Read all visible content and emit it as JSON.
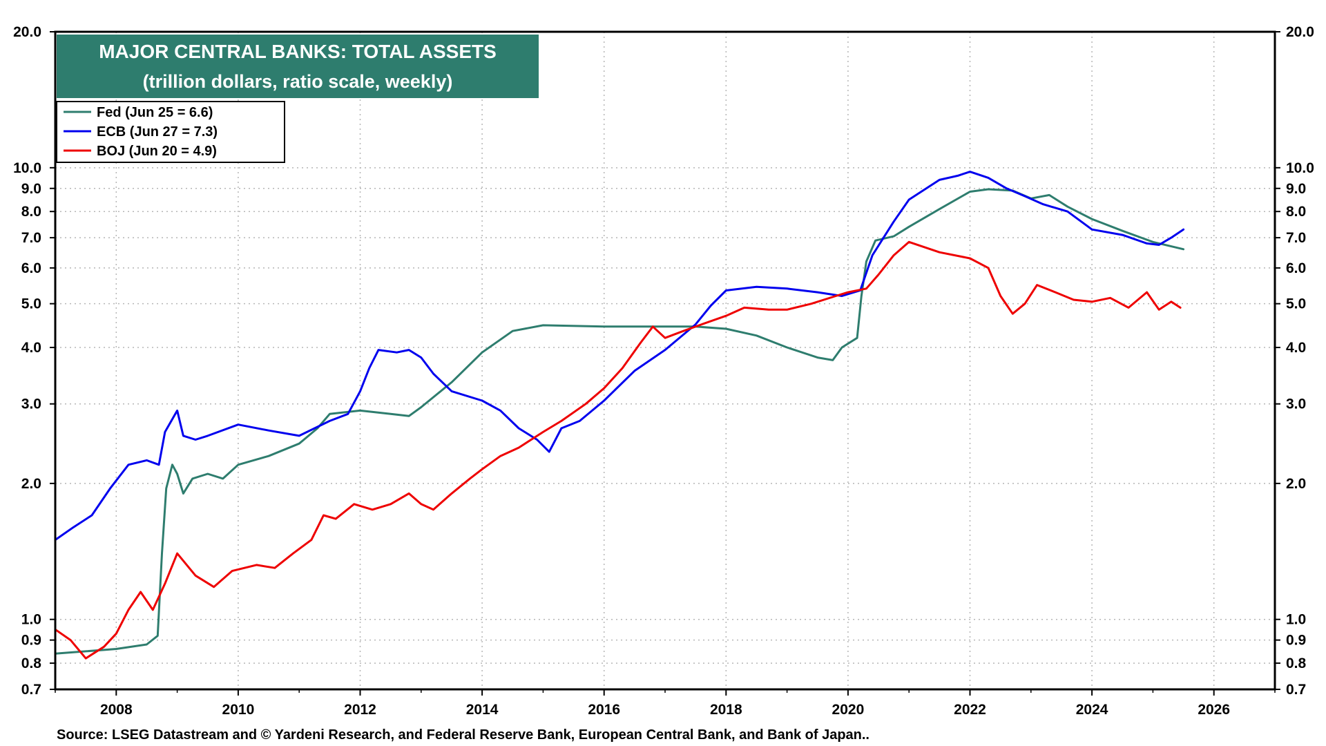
{
  "chart_data": {
    "type": "line",
    "title": "MAJOR CENTRAL BANKS: TOTAL ASSETS",
    "subtitle": "(trillion dollars, ratio scale, weekly)",
    "source": "Source: LSEG Datastream and © Yardeni Research, and Federal Reserve Bank, European Central Bank, and Bank of Japan..",
    "y_scale": "log",
    "ylim": [
      0.7,
      20.0
    ],
    "xlim": [
      2007.0,
      2027.0
    ],
    "grid": true,
    "legend_position": "top-left",
    "y_ticks": [
      "20.0",
      "10.0",
      "9.0",
      "8.0",
      "7.0",
      "6.0",
      "5.0",
      "4.0",
      "3.0",
      "2.0",
      "1.0",
      "0.9",
      "0.8",
      "0.7"
    ],
    "x_ticks": [
      "2008",
      "2010",
      "2012",
      "2014",
      "2016",
      "2018",
      "2020",
      "2022",
      "2024",
      "2026"
    ],
    "series": [
      {
        "name": "Fed (Jun 25 = 6.6)",
        "color": "#2e7d6e",
        "points": [
          [
            2007.0,
            0.84
          ],
          [
            2007.5,
            0.85
          ],
          [
            2008.0,
            0.86
          ],
          [
            2008.5,
            0.88
          ],
          [
            2008.68,
            0.92
          ],
          [
            2008.75,
            1.4
          ],
          [
            2008.82,
            1.95
          ],
          [
            2008.92,
            2.2
          ],
          [
            2009.0,
            2.1
          ],
          [
            2009.1,
            1.9
          ],
          [
            2009.25,
            2.05
          ],
          [
            2009.5,
            2.1
          ],
          [
            2009.75,
            2.05
          ],
          [
            2010.0,
            2.2
          ],
          [
            2010.5,
            2.3
          ],
          [
            2011.0,
            2.45
          ],
          [
            2011.3,
            2.65
          ],
          [
            2011.5,
            2.85
          ],
          [
            2012.0,
            2.9
          ],
          [
            2012.5,
            2.85
          ],
          [
            2012.8,
            2.82
          ],
          [
            2013.0,
            2.95
          ],
          [
            2013.5,
            3.35
          ],
          [
            2014.0,
            3.9
          ],
          [
            2014.5,
            4.35
          ],
          [
            2015.0,
            4.48
          ],
          [
            2016.0,
            4.45
          ],
          [
            2017.0,
            4.45
          ],
          [
            2017.5,
            4.45
          ],
          [
            2018.0,
            4.4
          ],
          [
            2018.5,
            4.25
          ],
          [
            2019.0,
            4.0
          ],
          [
            2019.5,
            3.8
          ],
          [
            2019.75,
            3.75
          ],
          [
            2019.9,
            4.0
          ],
          [
            2020.15,
            4.2
          ],
          [
            2020.22,
            5.2
          ],
          [
            2020.3,
            6.2
          ],
          [
            2020.45,
            6.9
          ],
          [
            2020.75,
            7.05
          ],
          [
            2021.0,
            7.4
          ],
          [
            2021.5,
            8.1
          ],
          [
            2022.0,
            8.85
          ],
          [
            2022.3,
            8.96
          ],
          [
            2022.7,
            8.9
          ],
          [
            2023.0,
            8.55
          ],
          [
            2023.3,
            8.7
          ],
          [
            2023.6,
            8.2
          ],
          [
            2024.0,
            7.7
          ],
          [
            2024.5,
            7.25
          ],
          [
            2025.0,
            6.85
          ],
          [
            2025.5,
            6.6
          ]
        ]
      },
      {
        "name": "ECB (Jun 27 = 7.3)",
        "color": "#0000ee",
        "points": [
          [
            2007.0,
            1.5
          ],
          [
            2007.3,
            1.6
          ],
          [
            2007.6,
            1.7
          ],
          [
            2007.9,
            1.95
          ],
          [
            2008.2,
            2.2
          ],
          [
            2008.5,
            2.25
          ],
          [
            2008.7,
            2.2
          ],
          [
            2008.8,
            2.6
          ],
          [
            2009.0,
            2.9
          ],
          [
            2009.1,
            2.55
          ],
          [
            2009.3,
            2.5
          ],
          [
            2009.5,
            2.55
          ],
          [
            2010.0,
            2.7
          ],
          [
            2010.5,
            2.62
          ],
          [
            2011.0,
            2.55
          ],
          [
            2011.5,
            2.75
          ],
          [
            2011.8,
            2.85
          ],
          [
            2012.0,
            3.2
          ],
          [
            2012.15,
            3.6
          ],
          [
            2012.3,
            3.95
          ],
          [
            2012.6,
            3.9
          ],
          [
            2012.8,
            3.95
          ],
          [
            2013.0,
            3.8
          ],
          [
            2013.2,
            3.5
          ],
          [
            2013.5,
            3.2
          ],
          [
            2014.0,
            3.05
          ],
          [
            2014.3,
            2.9
          ],
          [
            2014.6,
            2.65
          ],
          [
            2014.9,
            2.5
          ],
          [
            2015.1,
            2.35
          ],
          [
            2015.3,
            2.65
          ],
          [
            2015.6,
            2.75
          ],
          [
            2016.0,
            3.05
          ],
          [
            2016.5,
            3.55
          ],
          [
            2017.0,
            3.95
          ],
          [
            2017.5,
            4.5
          ],
          [
            2017.75,
            4.95
          ],
          [
            2018.0,
            5.35
          ],
          [
            2018.5,
            5.45
          ],
          [
            2019.0,
            5.4
          ],
          [
            2019.5,
            5.3
          ],
          [
            2019.9,
            5.2
          ],
          [
            2020.2,
            5.35
          ],
          [
            2020.4,
            6.4
          ],
          [
            2020.75,
            7.6
          ],
          [
            2021.0,
            8.5
          ],
          [
            2021.5,
            9.4
          ],
          [
            2021.8,
            9.6
          ],
          [
            2022.0,
            9.8
          ],
          [
            2022.3,
            9.5
          ],
          [
            2022.6,
            9.0
          ],
          [
            2022.9,
            8.65
          ],
          [
            2023.2,
            8.3
          ],
          [
            2023.6,
            8.0
          ],
          [
            2024.0,
            7.3
          ],
          [
            2024.5,
            7.1
          ],
          [
            2024.9,
            6.8
          ],
          [
            2025.1,
            6.75
          ],
          [
            2025.3,
            7.0
          ],
          [
            2025.5,
            7.3
          ]
        ]
      },
      {
        "name": "BOJ (Jun 20 = 4.9)",
        "color": "#ee0000",
        "points": [
          [
            2007.0,
            0.95
          ],
          [
            2007.25,
            0.9
          ],
          [
            2007.5,
            0.82
          ],
          [
            2007.8,
            0.87
          ],
          [
            2008.0,
            0.93
          ],
          [
            2008.2,
            1.05
          ],
          [
            2008.4,
            1.15
          ],
          [
            2008.6,
            1.05
          ],
          [
            2008.8,
            1.2
          ],
          [
            2009.0,
            1.4
          ],
          [
            2009.3,
            1.25
          ],
          [
            2009.6,
            1.18
          ],
          [
            2009.9,
            1.28
          ],
          [
            2010.3,
            1.32
          ],
          [
            2010.6,
            1.3
          ],
          [
            2010.9,
            1.4
          ],
          [
            2011.2,
            1.5
          ],
          [
            2011.4,
            1.7
          ],
          [
            2011.6,
            1.67
          ],
          [
            2011.9,
            1.8
          ],
          [
            2012.2,
            1.75
          ],
          [
            2012.5,
            1.8
          ],
          [
            2012.8,
            1.9
          ],
          [
            2013.0,
            1.8
          ],
          [
            2013.2,
            1.75
          ],
          [
            2013.5,
            1.9
          ],
          [
            2013.8,
            2.05
          ],
          [
            2014.0,
            2.15
          ],
          [
            2014.3,
            2.3
          ],
          [
            2014.6,
            2.4
          ],
          [
            2015.0,
            2.6
          ],
          [
            2015.3,
            2.75
          ],
          [
            2015.7,
            3.0
          ],
          [
            2016.0,
            3.25
          ],
          [
            2016.3,
            3.6
          ],
          [
            2016.6,
            4.1
          ],
          [
            2016.8,
            4.45
          ],
          [
            2017.0,
            4.2
          ],
          [
            2017.3,
            4.35
          ],
          [
            2017.6,
            4.5
          ],
          [
            2018.0,
            4.7
          ],
          [
            2018.3,
            4.9
          ],
          [
            2018.7,
            4.85
          ],
          [
            2019.0,
            4.85
          ],
          [
            2019.4,
            5.0
          ],
          [
            2019.8,
            5.2
          ],
          [
            2020.0,
            5.3
          ],
          [
            2020.3,
            5.4
          ],
          [
            2020.5,
            5.8
          ],
          [
            2020.75,
            6.4
          ],
          [
            2021.0,
            6.85
          ],
          [
            2021.5,
            6.5
          ],
          [
            2022.0,
            6.3
          ],
          [
            2022.3,
            6.0
          ],
          [
            2022.5,
            5.2
          ],
          [
            2022.7,
            4.75
          ],
          [
            2022.9,
            5.0
          ],
          [
            2023.1,
            5.5
          ],
          [
            2023.4,
            5.3
          ],
          [
            2023.7,
            5.1
          ],
          [
            2024.0,
            5.05
          ],
          [
            2024.3,
            5.15
          ],
          [
            2024.6,
            4.9
          ],
          [
            2024.9,
            5.3
          ],
          [
            2025.1,
            4.85
          ],
          [
            2025.3,
            5.05
          ],
          [
            2025.45,
            4.9
          ]
        ]
      }
    ]
  }
}
